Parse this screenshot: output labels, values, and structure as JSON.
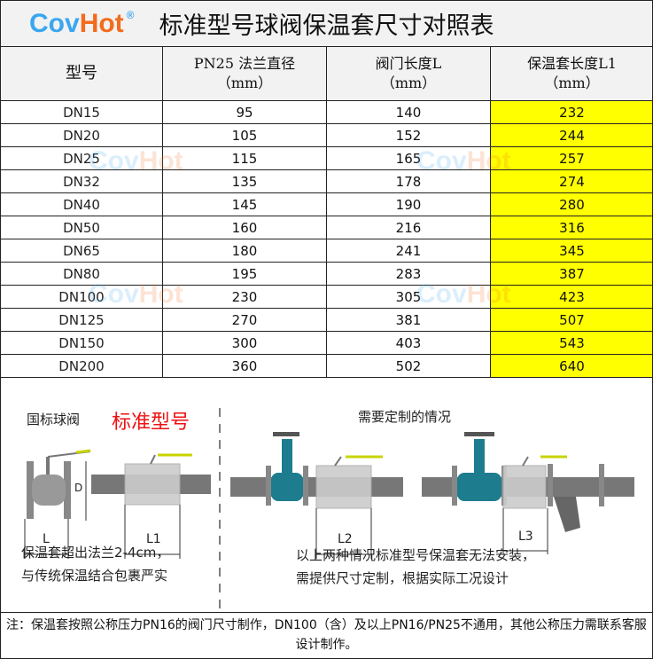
{
  "header": {
    "logo_cov": "Cov",
    "logo_hot": "Hot",
    "logo_reg": "®",
    "title": "标准型号球阀保温套尺寸对照表"
  },
  "table": {
    "columns": [
      {
        "line1": "型号",
        "line2": ""
      },
      {
        "line1": "PN25 法兰直径",
        "line2": "（mm）"
      },
      {
        "line1": "阀门长度L",
        "line2": "（mm）"
      },
      {
        "line1": "保温套长度L1",
        "line2": "（mm）"
      }
    ],
    "rows": [
      [
        "DN15",
        "95",
        "140",
        "232"
      ],
      [
        "DN20",
        "105",
        "152",
        "244"
      ],
      [
        "DN25",
        "115",
        "165",
        "257"
      ],
      [
        "DN32",
        "135",
        "178",
        "274"
      ],
      [
        "DN40",
        "145",
        "190",
        "280"
      ],
      [
        "DN50",
        "160",
        "216",
        "316"
      ],
      [
        "DN65",
        "180",
        "241",
        "345"
      ],
      [
        "DN80",
        "195",
        "283",
        "387"
      ],
      [
        "DN100",
        "230",
        "305",
        "423"
      ],
      [
        "DN125",
        "270",
        "381",
        "507"
      ],
      [
        "DN150",
        "300",
        "403",
        "543"
      ],
      [
        "DN200",
        "360",
        "502",
        "640"
      ]
    ],
    "highlight_color": "#ffff00"
  },
  "illustration": {
    "left_label": "国标球阀",
    "left_highlight": "标准型号",
    "right_label": "需要定制的情况",
    "dim_L": "L",
    "dim_L1": "L1",
    "dim_L2": "L2",
    "dim_L3": "L3",
    "dim_D": "D",
    "left_desc_1": "保温套超出法兰2-4cm，",
    "left_desc_2": "与传统保温结合包裹严实",
    "right_desc_1": "以上两种情况标准型号保温套无法安装，",
    "right_desc_2": "需提供尺寸定制，根据实际工况设计"
  },
  "note": "注：保温套按照公称压力PN16的阀门尺寸制作，DN100（含）及以上PN16/PN25不通用，其他公称压力需联系客服设计制作。"
}
